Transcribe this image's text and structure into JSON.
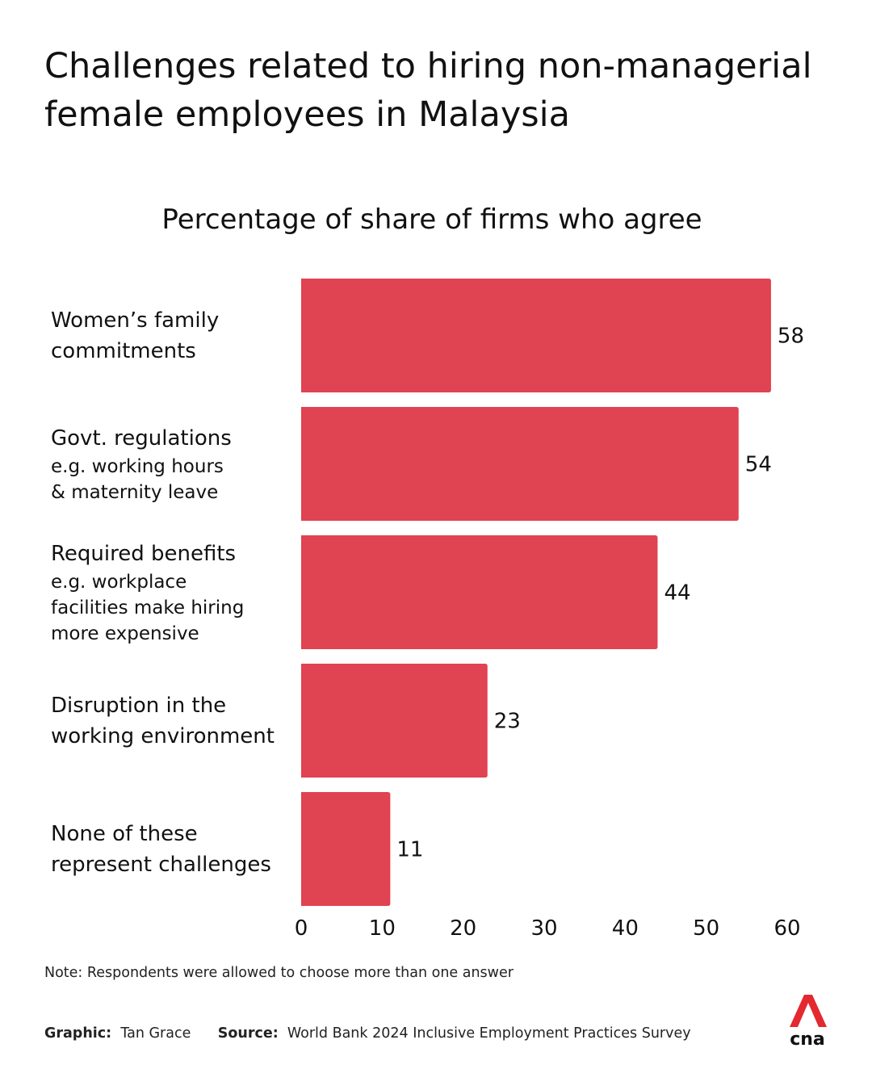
{
  "title_lines": [
    "Challenges related to hiring non-managerial",
    "female employees in Malaysia"
  ],
  "chart_data": {
    "type": "bar",
    "orientation": "horizontal",
    "subtitle": "Percentage of share of firms who agree",
    "categories": [
      {
        "main": [
          "Women’s family",
          "commitments"
        ],
        "sub": []
      },
      {
        "main": [
          "Govt. regulations"
        ],
        "sub": [
          "e.g. working hours",
          "& maternity leave"
        ]
      },
      {
        "main": [
          "Required benefits"
        ],
        "sub": [
          "e.g. workplace",
          "facilities make hiring",
          "more expensive"
        ]
      },
      {
        "main": [
          "Disruption in the",
          "working environment"
        ],
        "sub": []
      },
      {
        "main": [
          "None of these",
          "represent challenges"
        ],
        "sub": []
      }
    ],
    "values": [
      58,
      54,
      44,
      23,
      11
    ],
    "data_labels": [
      "58",
      "54",
      "44",
      "23",
      "11"
    ],
    "xlim": [
      0,
      60
    ],
    "xticks": [
      "0",
      "10",
      "20",
      "30",
      "40",
      "50",
      "60"
    ],
    "bar_color": "#e04351",
    "grid": false,
    "legend": "none"
  },
  "note": "Note: Respondents were allowed to choose more than one answer",
  "footer": {
    "graphic_key": "Graphic:",
    "graphic_value": "Tan Grace",
    "source_key": "Source:",
    "source_value": "World Bank 2024 Inclusive Employment Practices Survey"
  },
  "logo": {
    "text": "cna",
    "icon": "cna-logo-icon",
    "color": "#e3282f"
  }
}
